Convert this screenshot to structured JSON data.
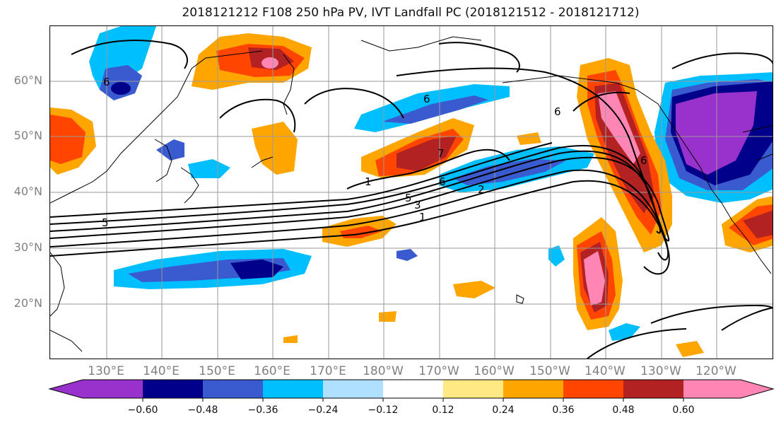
{
  "title": "2018121212 F108 250 hPa PV, IVT Landfall PC (2018121512 - 2018121712)",
  "lat_labels": [
    "60°N",
    "50°N",
    "40°N",
    "30°N",
    "20°N"
  ],
  "lon_labels": [
    "130°E",
    "140°E",
    "150°E",
    "160°E",
    "170°E",
    "180°W",
    "170°W",
    "160°W",
    "150°W",
    "140°W",
    "130°W",
    "120°W"
  ],
  "colorbar": {
    "colors": [
      "#9932CC",
      "#00008B",
      "#3A5BD0",
      "#00BFFF",
      "#B0E0FF",
      "#FFFFFF",
      "#FFE985",
      "#FFA500",
      "#FF4500",
      "#B22222",
      "#FF85B4"
    ],
    "ticks": [
      "−0.60",
      "−0.48",
      "−0.36",
      "−0.24",
      "−0.12",
      "0.12",
      "0.24",
      "0.36",
      "0.48",
      "0.60"
    ]
  },
  "contour_labels": [
    "6",
    "6",
    "7",
    "1",
    "6",
    "5",
    "3",
    "1",
    "2",
    "6",
    "5",
    "6"
  ]
}
